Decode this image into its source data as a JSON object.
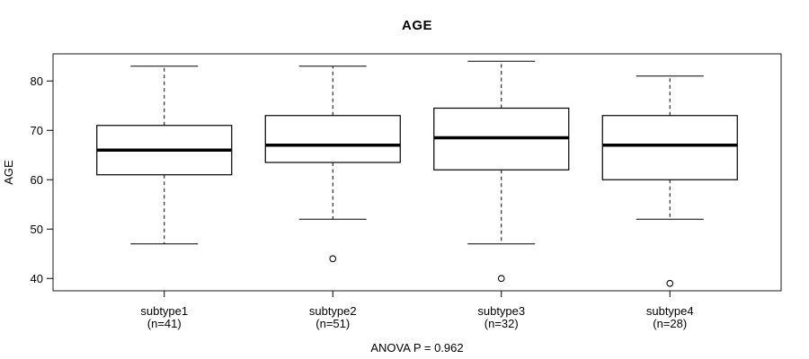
{
  "figure": {
    "background": "#ffffff"
  },
  "chart_data": {
    "type": "boxplot",
    "title": "AGE",
    "xlabel": "",
    "ylabel": "AGE",
    "annotation": "ANOVA P = 0.962",
    "ylim": [
      37.5,
      85.5
    ],
    "yticks": [
      40,
      50,
      60,
      70,
      80
    ],
    "grid": false,
    "legend": "none",
    "orientation": "vertical",
    "groups": [
      {
        "label": "subtype1",
        "sublabel": "(n=41)",
        "n": 41,
        "whisker_low": 47,
        "q1": 61,
        "median": 66,
        "q3": 71,
        "whisker_high": 83,
        "outliers": []
      },
      {
        "label": "subtype2",
        "sublabel": "(n=51)",
        "n": 51,
        "whisker_low": 52,
        "q1": 63.5,
        "median": 67,
        "q3": 73,
        "whisker_high": 83,
        "outliers": [
          44
        ]
      },
      {
        "label": "subtype3",
        "sublabel": "(n=32)",
        "n": 32,
        "whisker_low": 47,
        "q1": 62,
        "median": 68.5,
        "q3": 74.5,
        "whisker_high": 84,
        "outliers": [
          40
        ]
      },
      {
        "label": "subtype4",
        "sublabel": "(n=28)",
        "n": 28,
        "whisker_low": 52,
        "q1": 60,
        "median": 67,
        "q3": 73,
        "whisker_high": 81,
        "outliers": [
          39
        ]
      }
    ],
    "colors": {
      "line": "#000000",
      "frame": "#3f3f3f",
      "box_fill": "#ffffff",
      "background": "#ffffff"
    }
  }
}
